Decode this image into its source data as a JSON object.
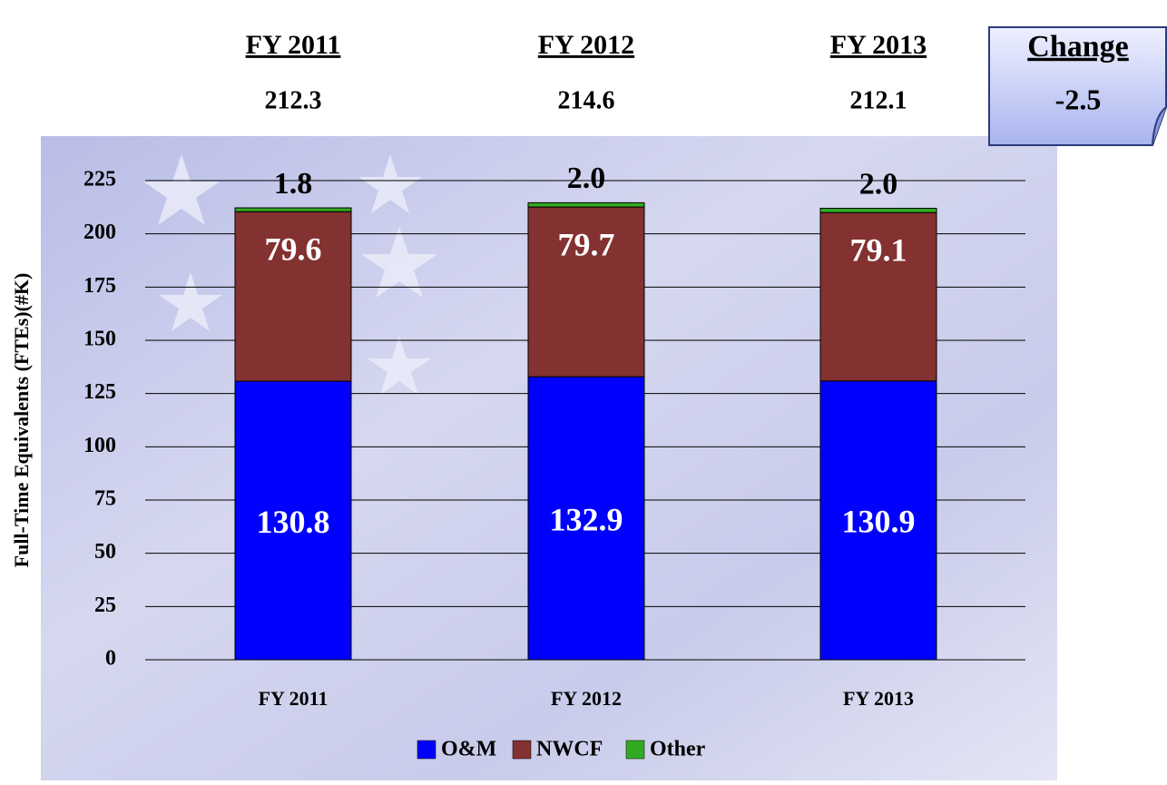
{
  "chart_data": {
    "type": "stacked_bar",
    "header": {
      "columns": [
        "FY 2011",
        "FY 2012",
        "FY 2013"
      ],
      "totals": [
        212.3,
        214.6,
        212.1
      ]
    },
    "change": {
      "label": "Change",
      "value": -2.5
    },
    "y_label": "Full-Time Equivalents (FTEs)(#K)",
    "categories": [
      "FY 2011",
      "FY 2012",
      "FY 2013"
    ],
    "series": [
      {
        "name": "O&M",
        "color": "#0000ff",
        "values": [
          130.8,
          132.9,
          130.9
        ]
      },
      {
        "name": "NWCF",
        "color": "#833131",
        "values": [
          79.6,
          79.7,
          79.1
        ]
      },
      {
        "name": "Other",
        "color": "#33aa22",
        "values": [
          1.8,
          2.0,
          2.0
        ],
        "value_labels": [
          "1.8",
          "2.0",
          "2.0"
        ]
      }
    ],
    "ylim": [
      0,
      225
    ],
    "yticks": [
      0,
      25,
      50,
      75,
      100,
      125,
      150,
      175,
      200,
      225
    ],
    "grid": true,
    "legend": "bottom"
  }
}
